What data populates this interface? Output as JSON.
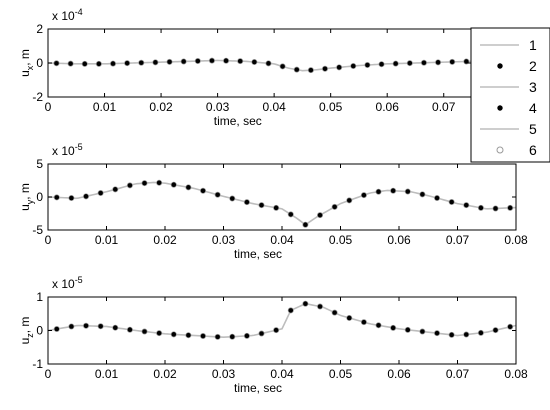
{
  "chart_data": [
    {
      "type": "line",
      "xlabel": "time, sec",
      "ylabel": "u",
      "ylabel_sub": "x",
      "ylabel_unit": ", m",
      "scale_label": "x 10",
      "scale_exponent": "-4",
      "xlim": [
        0,
        0.075
      ],
      "ylim": [
        -2,
        2
      ],
      "xticks": [
        0,
        0.01,
        0.02,
        0.03,
        0.04,
        0.05,
        0.06,
        0.07
      ],
      "xtick_labels": [
        "0",
        "0.01",
        "0.02",
        "0.03",
        "0.04",
        "0.05",
        "0.06",
        "0.07"
      ],
      "yticks": [
        -2,
        0,
        2
      ],
      "ytick_labels": [
        "-2",
        "0",
        "2"
      ],
      "markers_every": 0.0025,
      "curve": [
        [
          0,
          0
        ],
        [
          0.005,
          -0.05
        ],
        [
          0.01,
          -0.05
        ],
        [
          0.015,
          0
        ],
        [
          0.02,
          0.05
        ],
        [
          0.025,
          0.1
        ],
        [
          0.03,
          0.15
        ],
        [
          0.035,
          0.1
        ],
        [
          0.04,
          -0.05
        ],
        [
          0.0425,
          -0.3
        ],
        [
          0.045,
          -0.45
        ],
        [
          0.0475,
          -0.4
        ],
        [
          0.05,
          -0.3
        ],
        [
          0.055,
          -0.15
        ],
        [
          0.06,
          -0.05
        ],
        [
          0.065,
          0
        ],
        [
          0.07,
          0.05
        ],
        [
          0.075,
          0.1
        ]
      ]
    },
    {
      "type": "line",
      "xlabel": "time, sec",
      "ylabel": "u",
      "ylabel_sub": "y",
      "ylabel_unit": ", m",
      "scale_label": "x 10",
      "scale_exponent": "-5",
      "xlim": [
        0,
        0.08
      ],
      "ylim": [
        -5,
        5
      ],
      "xticks": [
        0,
        0.01,
        0.02,
        0.03,
        0.04,
        0.05,
        0.06,
        0.07,
        0.08
      ],
      "xtick_labels": [
        "0",
        "0.01",
        "0.02",
        "0.03",
        "0.04",
        "0.05",
        "0.06",
        "0.07",
        "0.08"
      ],
      "yticks": [
        -5,
        0,
        5
      ],
      "ytick_labels": [
        "-5",
        "0",
        "5"
      ],
      "markers_every": 0.0025,
      "curve": [
        [
          0,
          0
        ],
        [
          0.005,
          -0.2
        ],
        [
          0.01,
          0.8
        ],
        [
          0.015,
          2.0
        ],
        [
          0.018,
          2.2
        ],
        [
          0.02,
          2.1
        ],
        [
          0.025,
          1.3
        ],
        [
          0.03,
          0.1
        ],
        [
          0.035,
          -1.0
        ],
        [
          0.04,
          -1.8
        ],
        [
          0.0425,
          -3.2
        ],
        [
          0.044,
          -4.2
        ],
        [
          0.046,
          -3.0
        ],
        [
          0.05,
          -1.0
        ],
        [
          0.055,
          0.6
        ],
        [
          0.058,
          1.0
        ],
        [
          0.062,
          0.8
        ],
        [
          0.065,
          0.2
        ],
        [
          0.07,
          -1.0
        ],
        [
          0.075,
          -1.8
        ],
        [
          0.08,
          -1.6
        ]
      ]
    },
    {
      "type": "line",
      "xlabel": "time, sec",
      "ylabel": "u",
      "ylabel_sub": "z",
      "ylabel_unit": ", m",
      "scale_label": "x 10",
      "scale_exponent": "-5",
      "xlim": [
        0,
        0.08
      ],
      "ylim": [
        -1,
        1
      ],
      "xticks": [
        0,
        0.01,
        0.02,
        0.03,
        0.04,
        0.05,
        0.06,
        0.07,
        0.08
      ],
      "xtick_labels": [
        "0",
        "0.01",
        "0.02",
        "0.03",
        "0.04",
        "0.05",
        "0.06",
        "0.07",
        "0.08"
      ],
      "yticks": [
        -1,
        0,
        1
      ],
      "ytick_labels": [
        "-1",
        "0",
        "1"
      ],
      "markers_every": 0.0025,
      "curve": [
        [
          0,
          0
        ],
        [
          0.005,
          0.15
        ],
        [
          0.01,
          0.12
        ],
        [
          0.015,
          0.0
        ],
        [
          0.02,
          -0.1
        ],
        [
          0.025,
          -0.15
        ],
        [
          0.03,
          -0.2
        ],
        [
          0.035,
          -0.15
        ],
        [
          0.04,
          0.05
        ],
        [
          0.0415,
          0.6
        ],
        [
          0.044,
          0.8
        ],
        [
          0.047,
          0.7
        ],
        [
          0.05,
          0.45
        ],
        [
          0.055,
          0.2
        ],
        [
          0.06,
          0.05
        ],
        [
          0.065,
          -0.05
        ],
        [
          0.07,
          -0.15
        ],
        [
          0.075,
          -0.05
        ],
        [
          0.08,
          0.15
        ]
      ]
    }
  ],
  "legend": {
    "placement": "right",
    "entries": [
      {
        "label": "1",
        "style": "line",
        "color": "#bdbdbd"
      },
      {
        "label": "2",
        "style": "dot",
        "color": "#000000"
      },
      {
        "label": "3",
        "style": "line",
        "color": "#bdbdbd"
      },
      {
        "label": "4",
        "style": "dot",
        "color": "#000000"
      },
      {
        "label": "5",
        "style": "line",
        "color": "#bdbdbd"
      },
      {
        "label": "6",
        "style": "circle",
        "color": "#9a9a9a"
      }
    ]
  },
  "colors": {
    "line": "#bdbdbd",
    "filled_marker": "#000000",
    "open_marker": "#9a9a9a"
  }
}
